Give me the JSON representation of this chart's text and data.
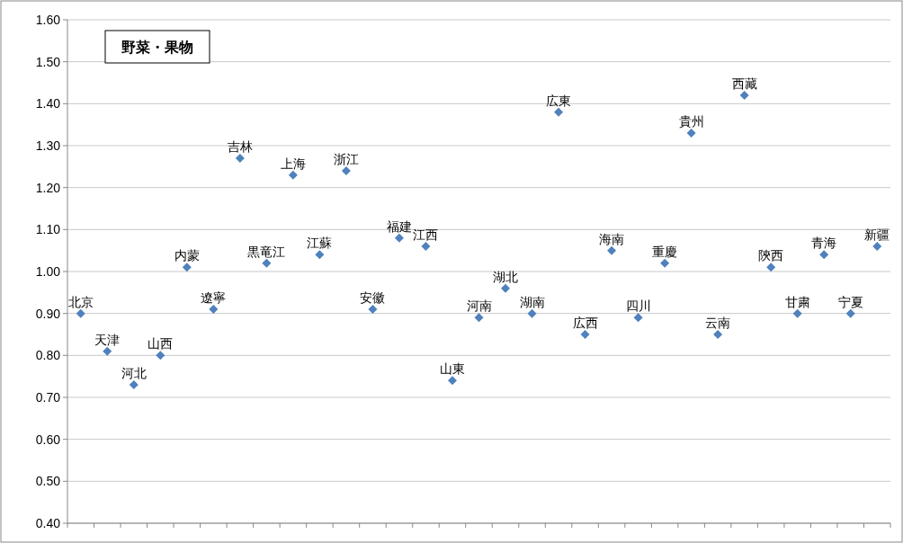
{
  "chart_data": {
    "type": "scatter",
    "title": "野菜・果物",
    "categories": [
      "北京",
      "天津",
      "河北",
      "山西",
      "内蒙",
      "遼寧",
      "吉林",
      "黒竜江",
      "上海",
      "江蘇",
      "浙江",
      "安徽",
      "福建",
      "江西",
      "山東",
      "河南",
      "湖北",
      "湖南",
      "広東",
      "広西",
      "海南",
      "四川",
      "重慶",
      "貴州",
      "云南",
      "西藏",
      "陝西",
      "甘粛",
      "青海",
      "宁夏",
      "新疆"
    ],
    "series": [
      {
        "color": "#4f81bd",
        "values": [
          0.9,
          0.81,
          0.73,
          0.8,
          1.01,
          0.91,
          1.27,
          1.02,
          1.23,
          1.04,
          1.24,
          0.91,
          1.08,
          1.06,
          0.74,
          0.89,
          0.96,
          0.9,
          1.38,
          0.85,
          1.05,
          0.89,
          1.02,
          1.33,
          0.85,
          1.42,
          1.01,
          0.9,
          1.04,
          0.9,
          1.06
        ]
      }
    ],
    "ylim": [
      0.4,
      1.6
    ],
    "yticks": [
      {
        "value": 0.4,
        "label": "0.40"
      },
      {
        "value": 0.5,
        "label": "0.50"
      },
      {
        "value": 0.6,
        "label": "0.60"
      },
      {
        "value": 0.7,
        "label": "0.70"
      },
      {
        "value": 0.8,
        "label": "0.80"
      },
      {
        "value": 0.9,
        "label": "0.90"
      },
      {
        "value": 1.0,
        "label": "1.00"
      },
      {
        "value": 1.1,
        "label": "1.10"
      },
      {
        "value": 1.2,
        "label": "1.20"
      },
      {
        "value": 1.3,
        "label": "1.30"
      },
      {
        "value": 1.4,
        "label": "1.40"
      },
      {
        "value": 1.5,
        "label": "1.50"
      },
      {
        "value": 1.6,
        "label": "1.60"
      }
    ],
    "grid": "y",
    "marker": "diamond",
    "tick_labels": "y"
  }
}
